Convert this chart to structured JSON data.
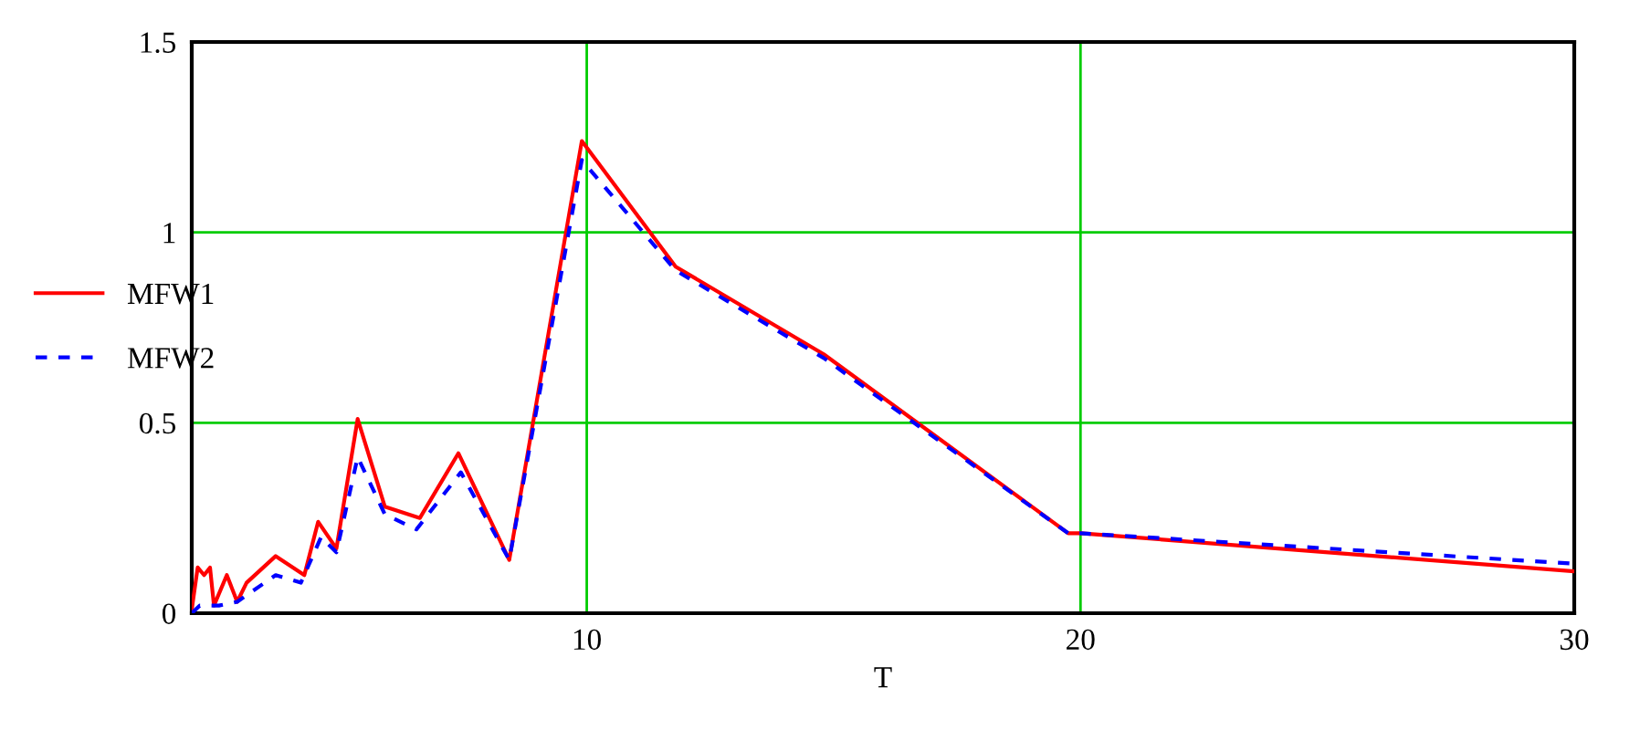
{
  "chart_data": {
    "type": "line",
    "xlabel": "T",
    "xlim": [
      2,
      30
    ],
    "ylim": [
      0,
      1.5
    ],
    "xticks": [
      10,
      20,
      30
    ],
    "yticks": [
      0,
      {
        "value": 0.5,
        "label": "0.5"
      },
      1,
      {
        "value": 1.5,
        "label": "1.5"
      }
    ],
    "grid": true,
    "legend": "left",
    "marker": "none",
    "series": [
      {
        "name": "MFW1",
        "color": "#ff0000",
        "line_style": "solid",
        "x": [
          2.0,
          2.12,
          2.25,
          2.37,
          2.45,
          2.71,
          2.92,
          3.11,
          3.7,
          4.28,
          4.56,
          4.93,
          5.36,
          5.91,
          6.62,
          7.4,
          8.43,
          9.9,
          11.8,
          14.8,
          19.75,
          20,
          30
        ],
        "values": [
          0.01,
          0.12,
          0.1,
          0.12,
          0.02,
          0.1,
          0.03,
          0.08,
          0.15,
          0.1,
          0.24,
          0.17,
          0.51,
          0.28,
          0.25,
          0.42,
          0.14,
          1.24,
          0.91,
          0.68,
          0.21,
          0.21,
          0.11
        ]
      },
      {
        "name": "MFW2",
        "color": "#0000ff",
        "line_style": "dashed",
        "x": [
          2.0,
          2.16,
          2.55,
          2.92,
          3.7,
          4.21,
          4.62,
          4.93,
          5.36,
          5.91,
          6.55,
          7.45,
          8.43,
          9.9,
          11.8,
          14.8,
          19.75,
          20,
          30
        ],
        "values": [
          0.0,
          0.02,
          0.02,
          0.03,
          0.1,
          0.08,
          0.2,
          0.16,
          0.41,
          0.26,
          0.22,
          0.37,
          0.14,
          1.19,
          0.9,
          0.67,
          0.21,
          0.21,
          0.13
        ]
      }
    ]
  }
}
